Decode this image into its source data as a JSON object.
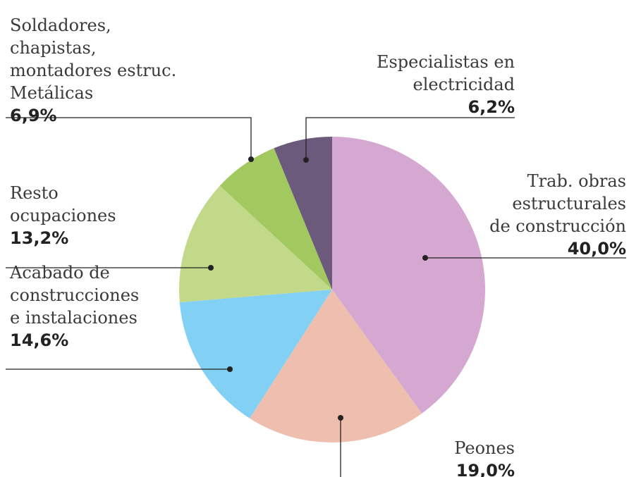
{
  "chart_data": {
    "type": "pie",
    "categories": [
      "Trab. obras\nestructurales\nde construcción",
      "Peones",
      "Acabado de\nconstrucciones\ne instalaciones",
      "Resto\nocupaciones",
      "Soldadores,\nchapistas,\nmontadores estruc.\nMetálicas",
      "Especialistas en\nelectricidad"
    ],
    "values": [
      40.0,
      19.0,
      14.6,
      13.2,
      6.9,
      6.2
    ],
    "value_labels": [
      "40,0%",
      "19,0%",
      "14,6%",
      "13,2%",
      "6,9%",
      "6,2%"
    ],
    "colors": [
      "#d4a8d0",
      "#eebfae",
      "#82d0f4",
      "#c3d98a",
      "#a2c95f",
      "#6b5a7b"
    ]
  }
}
